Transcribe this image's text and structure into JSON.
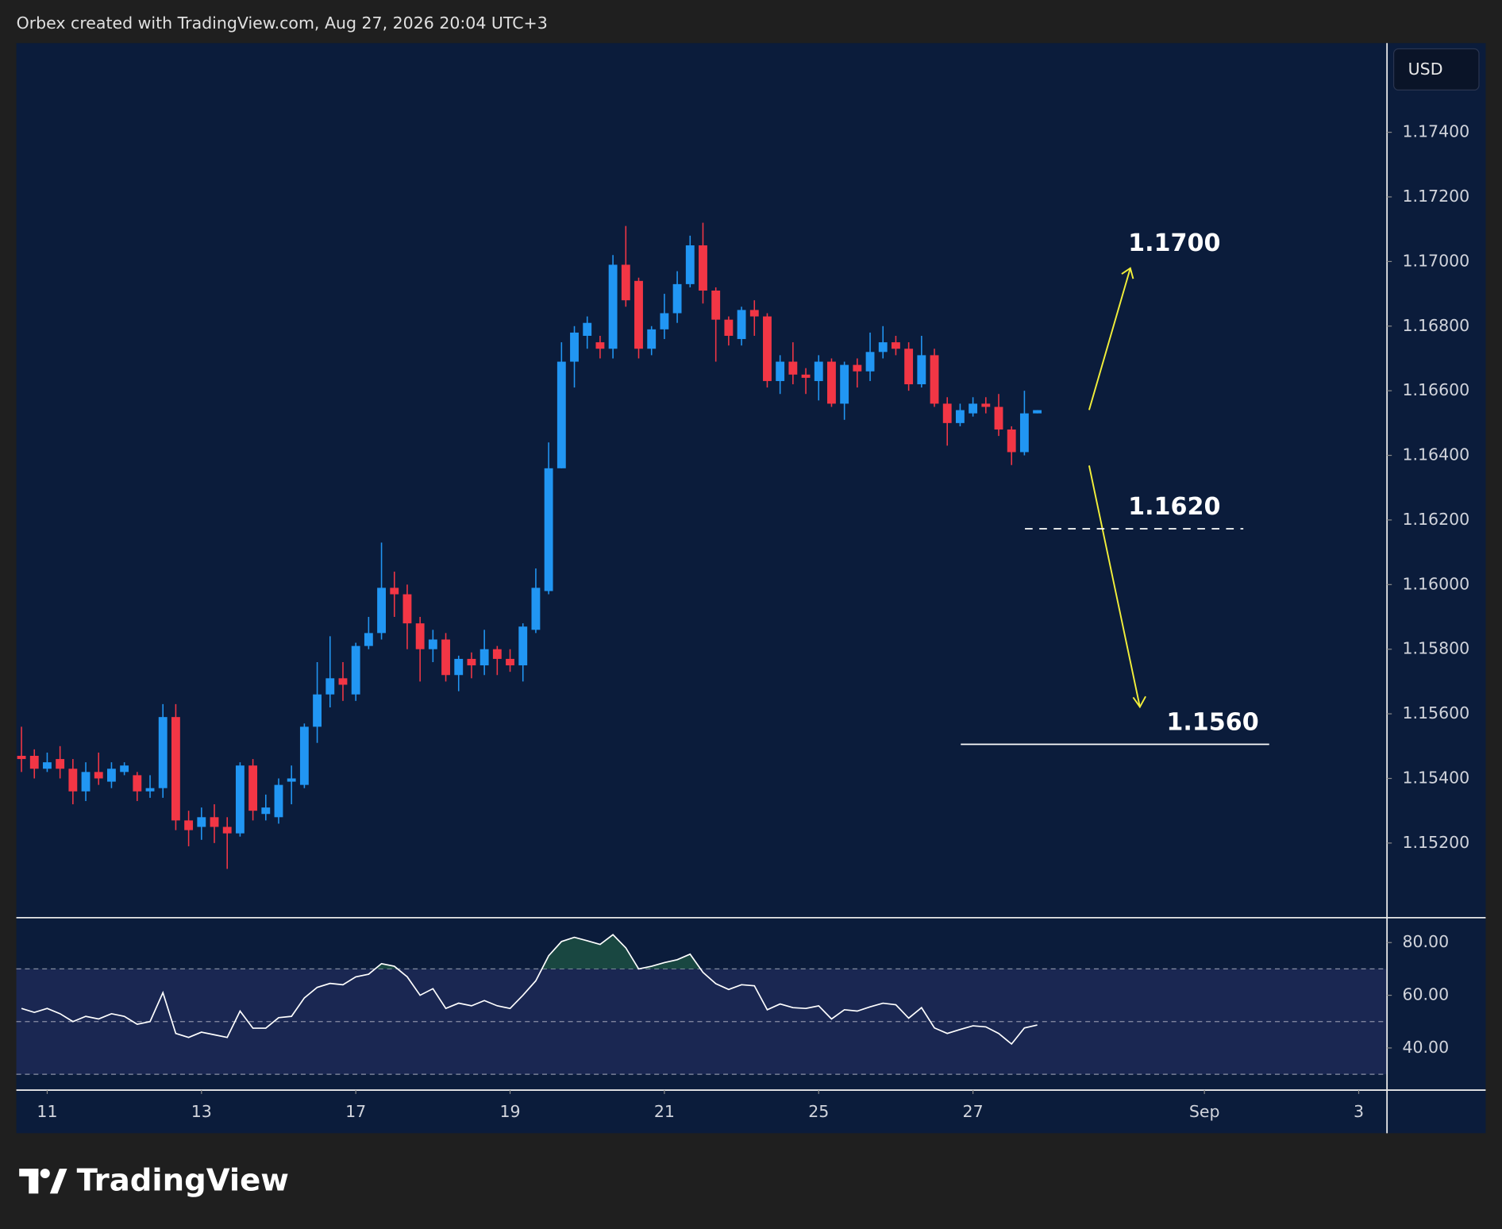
{
  "header": "Orbex created with TradingView.com, Aug 27, 2026 20:04 UTC+3",
  "logo": "TradingView",
  "chart_data": [
    {
      "type": "candlestick",
      "currency": "USD",
      "up_color": "#2196f3",
      "down_color": "#f23645",
      "xlim": [
        -0.4,
        106.2
      ],
      "ylim": [
        1.14969,
        1.17676
      ],
      "yticks": [
        {
          "value": 1.174,
          "label": "1.17400"
        },
        {
          "value": 1.172,
          "label": "1.17200"
        },
        {
          "value": 1.17,
          "label": "1.17000"
        },
        {
          "value": 1.168,
          "label": "1.16800"
        },
        {
          "value": 1.166,
          "label": "1.16600"
        },
        {
          "value": 1.164,
          "label": "1.16400"
        },
        {
          "value": 1.162,
          "label": "1.16200"
        },
        {
          "value": 1.16,
          "label": "1.16000"
        },
        {
          "value": 1.158,
          "label": "1.15800"
        },
        {
          "value": 1.156,
          "label": "1.15600"
        },
        {
          "value": 1.154,
          "label": "1.15400"
        },
        {
          "value": 1.152,
          "label": "1.15200"
        }
      ],
      "annotations": [
        "1.1700",
        "1.1620",
        "1.1560"
      ],
      "open": [
        1.1547,
        1.1547,
        1.1543,
        1.1546,
        1.1543,
        1.1536,
        1.1542,
        1.1539,
        1.1542,
        1.1541,
        1.1536,
        1.1537,
        1.1559,
        1.1527,
        1.1525,
        1.1528,
        1.1525,
        1.1523,
        1.1544,
        1.1529,
        1.1528,
        1.1539,
        1.1538,
        1.1556,
        1.1566,
        1.1571,
        1.1566,
        1.1581,
        1.1585,
        1.1599,
        1.1597,
        1.1588,
        1.158,
        1.1583,
        1.1572,
        1.1577,
        1.1575,
        1.158,
        1.1577,
        1.1575,
        1.1586,
        1.1598,
        1.1636,
        1.1669,
        1.1677,
        1.1675,
        1.1673,
        1.1699,
        1.1694,
        1.1673,
        1.1679,
        1.1684,
        1.1693,
        1.1705,
        1.1691,
        1.1682,
        1.1676,
        1.1685,
        1.1683,
        1.1663,
        1.1669,
        1.1665,
        1.1663,
        1.1669,
        1.1656,
        1.1668,
        1.1666,
        1.1672,
        1.1675,
        1.1673,
        1.1662,
        1.1671,
        1.1656,
        1.165,
        1.1653,
        1.1656,
        1.1655,
        1.1648,
        1.1641,
        1.1653
      ],
      "high": [
        1.1556,
        1.1549,
        1.1548,
        1.155,
        1.1546,
        1.1545,
        1.1548,
        1.1545,
        1.1545,
        1.1542,
        1.1541,
        1.1563,
        1.1563,
        1.153,
        1.1531,
        1.1532,
        1.1528,
        1.1545,
        1.1546,
        1.1535,
        1.154,
        1.1544,
        1.1557,
        1.1576,
        1.1584,
        1.1576,
        1.1582,
        1.159,
        1.1613,
        1.1604,
        1.16,
        1.159,
        1.1586,
        1.1585,
        1.1578,
        1.1579,
        1.1586,
        1.1581,
        1.158,
        1.1588,
        1.1605,
        1.1644,
        1.1675,
        1.168,
        1.1683,
        1.1677,
        1.1702,
        1.1711,
        1.1695,
        1.168,
        1.169,
        1.1697,
        1.1708,
        1.1712,
        1.1692,
        1.1683,
        1.1686,
        1.1688,
        1.1684,
        1.1671,
        1.1675,
        1.1667,
        1.1671,
        1.167,
        1.1669,
        1.167,
        1.1678,
        1.168,
        1.1677,
        1.1675,
        1.1677,
        1.1673,
        1.1658,
        1.1656,
        1.1658,
        1.1658,
        1.1659,
        1.1649,
        1.166,
        1.1654
      ],
      "low": [
        1.1542,
        1.154,
        1.1542,
        1.154,
        1.1532,
        1.1533,
        1.1538,
        1.1537,
        1.1541,
        1.1533,
        1.1534,
        1.1534,
        1.1524,
        1.1519,
        1.1521,
        1.152,
        1.1512,
        1.1522,
        1.1527,
        1.1527,
        1.1526,
        1.1532,
        1.1537,
        1.1551,
        1.1562,
        1.1564,
        1.1564,
        1.158,
        1.1583,
        1.159,
        1.158,
        1.157,
        1.1576,
        1.157,
        1.1567,
        1.1571,
        1.1572,
        1.1572,
        1.1573,
        1.157,
        1.1585,
        1.1597,
        1.1636,
        1.1661,
        1.1673,
        1.167,
        1.167,
        1.1686,
        1.167,
        1.1671,
        1.1676,
        1.1681,
        1.1692,
        1.1687,
        1.1669,
        1.1674,
        1.1674,
        1.1677,
        1.1661,
        1.1659,
        1.1662,
        1.1659,
        1.1657,
        1.1655,
        1.1651,
        1.1661,
        1.1663,
        1.167,
        1.1671,
        1.166,
        1.1661,
        1.1655,
        1.1643,
        1.1649,
        1.1652,
        1.1653,
        1.1646,
        1.1637,
        1.164,
        1.1653
      ],
      "close": [
        1.1546,
        1.1543,
        1.1545,
        1.1543,
        1.1536,
        1.1542,
        1.154,
        1.1543,
        1.1544,
        1.1536,
        1.1537,
        1.1559,
        1.1527,
        1.1524,
        1.1528,
        1.1525,
        1.1523,
        1.1544,
        1.153,
        1.1531,
        1.1538,
        1.154,
        1.1556,
        1.1566,
        1.1571,
        1.1569,
        1.1581,
        1.1585,
        1.1599,
        1.1597,
        1.1588,
        1.158,
        1.1583,
        1.1572,
        1.1577,
        1.1575,
        1.158,
        1.1577,
        1.1575,
        1.1587,
        1.1599,
        1.1636,
        1.1669,
        1.1678,
        1.1681,
        1.1673,
        1.1699,
        1.1688,
        1.1673,
        1.1679,
        1.1684,
        1.1693,
        1.1705,
        1.1691,
        1.1682,
        1.1677,
        1.1685,
        1.1683,
        1.1663,
        1.1669,
        1.1665,
        1.1664,
        1.1669,
        1.1656,
        1.1668,
        1.1666,
        1.1672,
        1.1675,
        1.1673,
        1.1662,
        1.1671,
        1.1656,
        1.165,
        1.1654,
        1.1656,
        1.1655,
        1.1648,
        1.1641,
        1.1653,
        1.1654
      ]
    },
    {
      "type": "line",
      "color": "#ffffff",
      "xlim": [
        -0.4,
        106.2
      ],
      "ylim": [
        24,
        89.45
      ],
      "yticks": [
        {
          "value": 80,
          "label": "80.00"
        },
        {
          "value": 60,
          "label": "60.00"
        },
        {
          "value": 40,
          "label": "40.00"
        }
      ],
      "bands": [
        30,
        50,
        70
      ],
      "xticks": [
        {
          "value": 2,
          "label": "11"
        },
        {
          "value": 14,
          "label": "13"
        },
        {
          "value": 26,
          "label": "17"
        },
        {
          "value": 38,
          "label": "19"
        },
        {
          "value": 50,
          "label": "21"
        },
        {
          "value": 62,
          "label": "25"
        },
        {
          "value": 74,
          "label": "27"
        },
        {
          "value": 92,
          "label": "Sep"
        },
        {
          "value": 104,
          "label": "3"
        }
      ],
      "values": [
        55,
        53.5,
        55,
        53,
        50,
        52,
        51,
        53,
        52,
        49,
        50,
        61,
        45.5,
        44,
        46,
        45,
        44,
        54,
        47.5,
        47.5,
        51.5,
        52,
        59,
        63,
        64.5,
        64,
        67,
        68,
        72,
        71,
        67,
        60,
        62.5,
        55,
        57,
        56,
        58,
        56,
        55,
        60,
        65.5,
        75,
        80.4,
        82,
        80.7,
        79.3,
        83,
        78,
        70,
        71,
        72.4,
        73.5,
        75.6,
        68.7,
        64.4,
        62.2,
        64,
        63.6,
        54.5,
        56.7,
        55.3,
        55,
        56,
        51,
        54.5,
        54,
        55.6,
        57,
        56.4,
        51.3,
        55.3,
        47.6,
        45.5,
        47,
        48.4,
        48,
        45.5,
        41.5,
        47.6,
        48.7
      ]
    }
  ]
}
